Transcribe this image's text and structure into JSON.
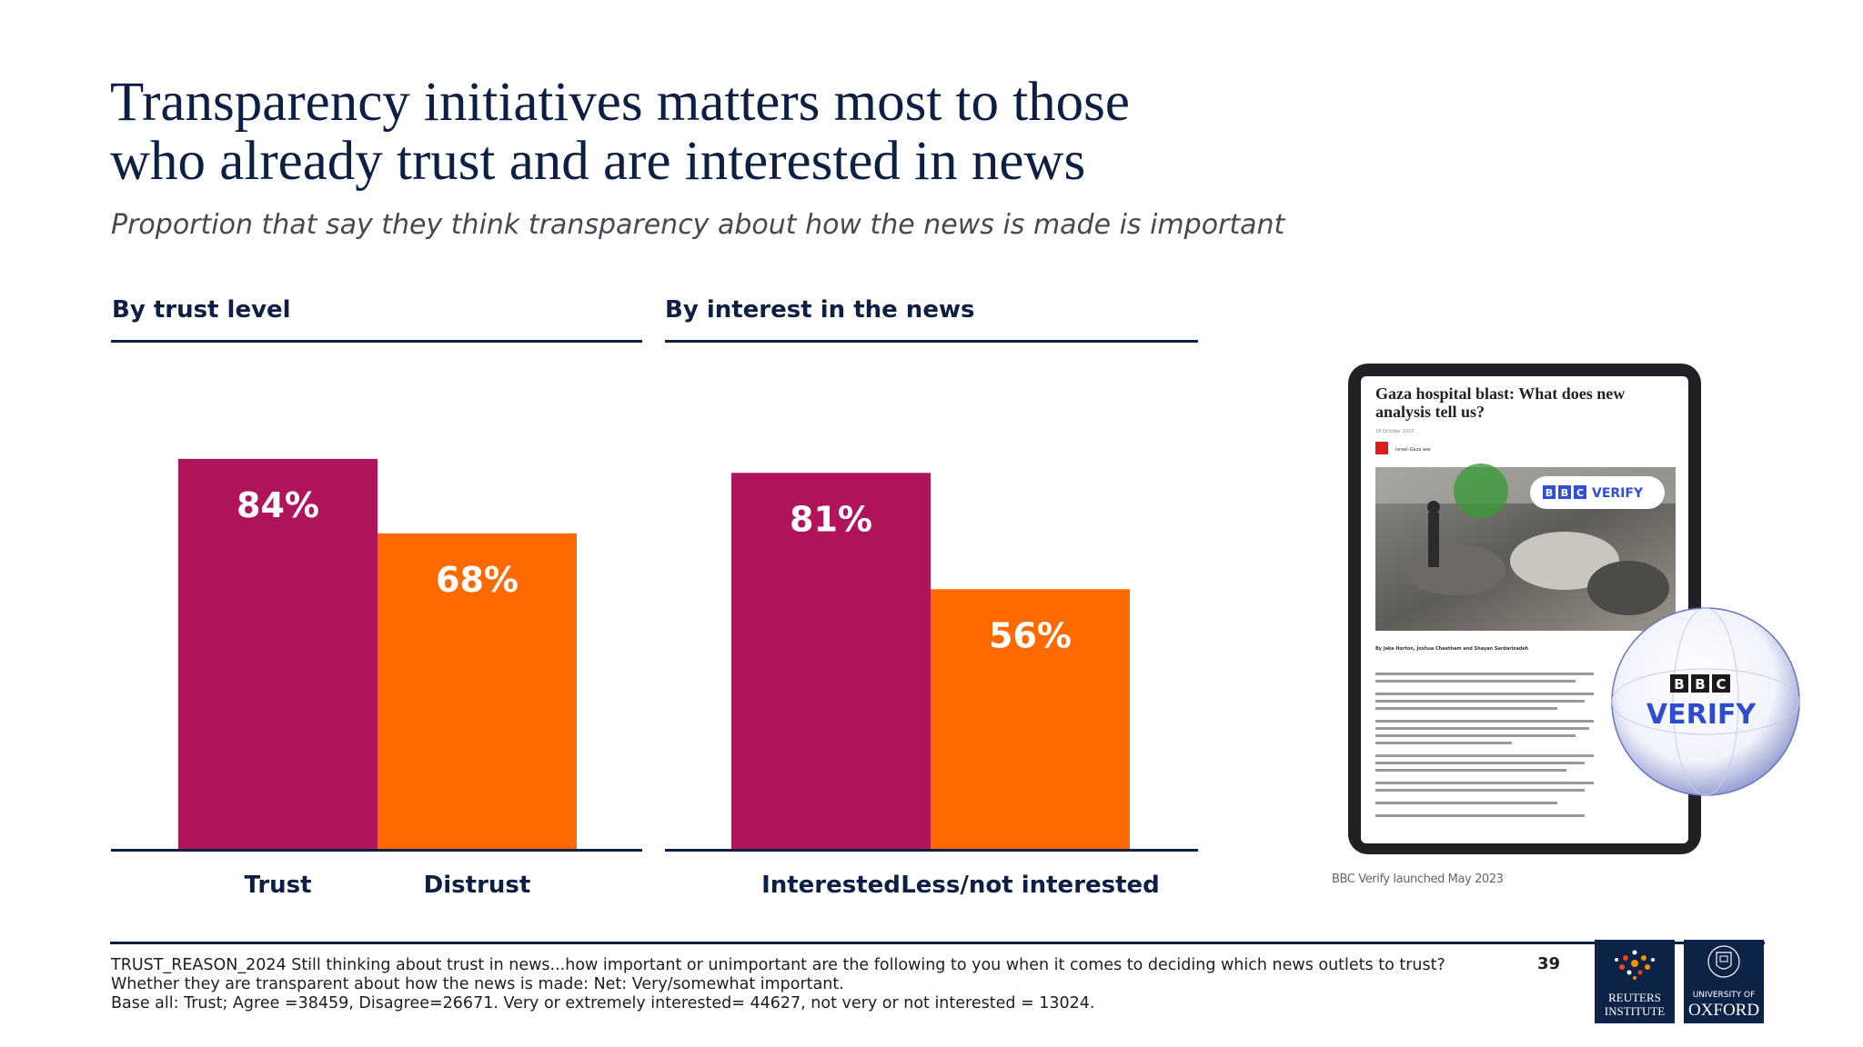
{
  "title_line1": "Transparency initiatives matters most to those",
  "title_line2": "who already trust and are interested in news",
  "subtitle": "Proportion that say they think transparency about how the news is made is important",
  "colors": {
    "primary": "#b0155c",
    "secondary": "#ff6a00",
    "navy": "#0d1f44"
  },
  "chart_data": [
    {
      "type": "bar",
      "title": "By trust level",
      "categories": [
        "Trust",
        "Distrust"
      ],
      "values": [
        84,
        68
      ],
      "value_labels": [
        "84%",
        "68%"
      ],
      "unit": "%",
      "ylim": [
        0,
        100
      ]
    },
    {
      "type": "bar",
      "title": "By interest in the news",
      "categories": [
        "Interested",
        "Less/not interested"
      ],
      "values": [
        81,
        56
      ],
      "value_labels": [
        "81%",
        "56%"
      ],
      "unit": "%",
      "ylim": [
        0,
        100
      ]
    }
  ],
  "image": {
    "headline_line1": "Gaza hospital blast: What does new",
    "headline_line2": "analysis tell us?",
    "date": "18 October 2023",
    "tag": "Israel-Gaza war",
    "badge_text": "VERIFY",
    "badge_letters": [
      "B",
      "B",
      "C"
    ],
    "byline": "By Jake Horton, Joshua Cheetham and Shayan Sardarizadeh",
    "sphere_text": "VERIFY",
    "caption": "BBC Verify launched May 2023"
  },
  "footnote": {
    "line1": "TRUST_REASON_2024 Still thinking about trust in news...how important or unimportant are the following to you when it comes to deciding which news outlets to trust?",
    "line2": "Whether they are transparent about how the news is made: Net: Very/somewhat important.",
    "line3": "Base all: Trust; Agree =38459, Disagree=26671. Very or extremely interested= 44627, not very or not interested = 13024."
  },
  "page_number": "39",
  "logos": {
    "reuters_line1": "REUTERS",
    "reuters_line2": "INSTITUTE",
    "oxford_line1": "UNIVERSITY OF",
    "oxford_line2": "OXFORD"
  }
}
